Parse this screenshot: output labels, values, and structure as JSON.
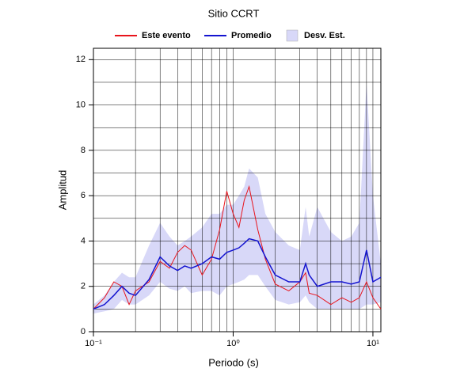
{
  "chart_data": {
    "type": "line",
    "title": "Sitio CCRT",
    "x_label": "Periodo (s)",
    "y_label": "Amplitud",
    "x": [
      0.1,
      0.12,
      0.14,
      0.16,
      0.18,
      0.2,
      0.25,
      0.3,
      0.35,
      0.4,
      0.45,
      0.5,
      0.6,
      0.7,
      0.8,
      0.9,
      1.0,
      1.1,
      1.2,
      1.3,
      1.5,
      1.7,
      2,
      2.5,
      3,
      3.3,
      3.5,
      4,
      5,
      6,
      7,
      8,
      9,
      10,
      11.4
    ],
    "series": [
      {
        "name": "Este evento",
        "color": "#e8141c",
        "values": [
          1.0,
          1.5,
          2.2,
          2.0,
          1.2,
          1.8,
          2.2,
          3.1,
          2.8,
          3.5,
          3.8,
          3.6,
          2.5,
          3.2,
          4.5,
          6.2,
          5.2,
          4.6,
          5.8,
          6.4,
          4.5,
          3.2,
          2.1,
          1.8,
          2.2,
          2.6,
          1.7,
          1.6,
          1.2,
          1.5,
          1.3,
          1.5,
          2.2,
          1.5,
          1.0
        ]
      },
      {
        "name": "Promedio",
        "color": "#1414d0",
        "values": [
          1.0,
          1.2,
          1.6,
          2.0,
          1.7,
          1.6,
          2.3,
          3.3,
          2.9,
          2.7,
          2.9,
          2.8,
          3.0,
          3.3,
          3.2,
          3.5,
          3.6,
          3.7,
          3.9,
          4.1,
          4.0,
          3.3,
          2.5,
          2.2,
          2.2,
          3.0,
          2.5,
          2.0,
          2.2,
          2.2,
          2.1,
          2.2,
          3.6,
          2.2,
          2.4
        ]
      },
      {
        "name": "Desv. Est.",
        "color": "#d8d8f8",
        "kind": "band",
        "upper": [
          1.2,
          1.6,
          2.2,
          2.6,
          2.4,
          2.4,
          3.8,
          4.8,
          4.2,
          3.8,
          4.0,
          4.2,
          4.6,
          5.2,
          5.2,
          5.6,
          5.6,
          6.0,
          6.4,
          7.2,
          6.8,
          5.2,
          4.4,
          3.8,
          3.6,
          5.5,
          4.2,
          5.5,
          4.4,
          4.0,
          4.2,
          4.8,
          11,
          6.0,
          3.0
        ],
        "lower": [
          0.8,
          0.9,
          1.0,
          1.4,
          1.2,
          1.2,
          1.6,
          2.2,
          1.9,
          1.8,
          2.0,
          1.7,
          1.8,
          1.8,
          1.6,
          2.0,
          2.1,
          2.2,
          2.3,
          2.5,
          2.5,
          2.0,
          1.4,
          1.2,
          1.3,
          1.6,
          1.3,
          1.0,
          1.0,
          1.0,
          1.0,
          1.0,
          1.2,
          1.2,
          1.3
        ]
      }
    ],
    "x_log": true,
    "xlim": [
      0.1,
      11.4
    ],
    "ylim": [
      0,
      12.5
    ],
    "xticks": [
      {
        "value": 0.1,
        "label": "10⁻¹"
      },
      {
        "value": 1,
        "label": "10⁰"
      },
      {
        "value": 10,
        "label": "10¹"
      }
    ],
    "x_minor_ticks": [
      0.2,
      0.3,
      0.4,
      0.5,
      0.6,
      0.7,
      0.8,
      0.9,
      2,
      3,
      4,
      5,
      6,
      7,
      8,
      9
    ],
    "yticks": [
      0,
      2,
      4,
      6,
      8,
      10,
      12
    ],
    "y_minor_ticks": [
      1,
      3,
      5,
      7,
      9,
      11
    ],
    "grid": true
  }
}
